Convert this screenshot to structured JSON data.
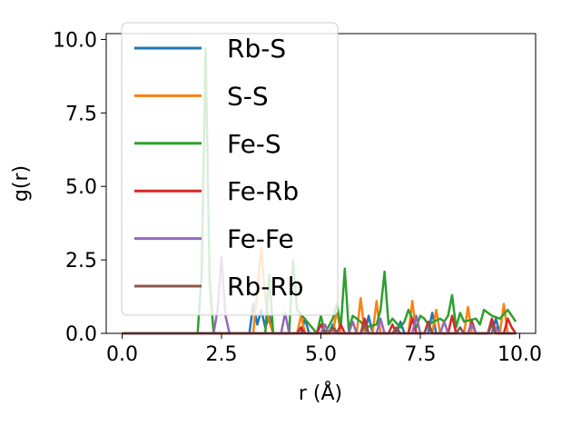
{
  "chart_data": {
    "type": "line",
    "title": "",
    "xlabel": "r (Å)",
    "ylabel": "g(r)",
    "xlim": [
      -0.4,
      10.4
    ],
    "ylim": [
      0,
      10.2
    ],
    "xticks": [
      "0.0",
      "2.5",
      "5.0",
      "7.5",
      "10.0"
    ],
    "yticks": [
      "0.0",
      "2.5",
      "5.0",
      "7.5",
      "10.0"
    ],
    "grid": false,
    "legend_position": "upper-left",
    "series": [
      {
        "name": "Rb-S",
        "color": "#1f77b4",
        "x": [
          0,
          3.2,
          3.3,
          3.4,
          3.5,
          3.6,
          3.7,
          3.8,
          4.5,
          4.6,
          4.7,
          5.2,
          5.3,
          5.4,
          6.1,
          6.2,
          6.3,
          6.9,
          7.0,
          7.1,
          7.7,
          7.8,
          7.9,
          9.3,
          9.4,
          9.5,
          9.9
        ],
        "y": [
          0,
          0,
          1.0,
          0.3,
          0.8,
          0.2,
          0.6,
          0,
          0,
          0.5,
          0,
          0,
          0.3,
          0,
          0,
          0.6,
          0,
          0,
          0.4,
          0,
          0,
          0.7,
          0,
          0,
          0.5,
          0,
          0
        ]
      },
      {
        "name": "S-S",
        "color": "#ff7f0e",
        "x": [
          0,
          3.3,
          3.4,
          3.5,
          3.6,
          3.7,
          3.8,
          4.4,
          4.5,
          4.6,
          5.3,
          5.4,
          5.5,
          5.9,
          6.0,
          6.1,
          6.3,
          6.4,
          6.5,
          7.2,
          7.3,
          7.4,
          7.8,
          7.9,
          8.0,
          8.6,
          8.7,
          8.8,
          9.5,
          9.6,
          9.7,
          9.9
        ],
        "y": [
          0,
          0,
          1.5,
          2.9,
          1.2,
          0.4,
          0,
          0,
          0.6,
          0,
          0,
          0.8,
          0,
          0,
          1.2,
          0,
          0,
          1.1,
          0,
          0,
          1.1,
          0,
          0,
          0.8,
          0,
          0,
          0.9,
          0,
          0,
          1.0,
          0,
          0
        ]
      },
      {
        "name": "Fe-S",
        "color": "#2ca02c",
        "x": [
          0,
          1.9,
          2.0,
          2.1,
          2.2,
          2.3,
          3.6,
          3.7,
          3.8,
          4.2,
          4.3,
          4.4,
          4.9,
          5.0,
          5.1,
          5.3,
          5.4,
          5.5,
          5.6,
          5.7,
          5.8,
          5.9,
          6.0,
          6.1,
          6.4,
          6.5,
          6.6,
          6.7,
          6.8,
          7.0,
          7.1,
          7.2,
          7.4,
          7.5,
          7.6,
          7.7,
          8.0,
          8.1,
          8.2,
          8.3,
          8.4,
          8.5,
          8.6,
          8.9,
          9.0,
          9.1,
          9.3,
          9.5,
          9.7,
          9.8,
          9.9
        ],
        "y": [
          0,
          0,
          2.0,
          9.7,
          1.8,
          0,
          0,
          2.0,
          0,
          0,
          2.5,
          0.8,
          0,
          0.6,
          0,
          0.5,
          1.0,
          0.2,
          2.2,
          0.1,
          0.6,
          0.5,
          0.4,
          0.2,
          0.3,
          0.8,
          2.1,
          0.3,
          0.5,
          0.2,
          0.4,
          0.8,
          0.2,
          0.6,
          0.5,
          0.3,
          0.5,
          0.4,
          0.6,
          1.3,
          0.2,
          0.7,
          0.4,
          0.5,
          0.3,
          0.8,
          0.6,
          0.5,
          0.8,
          0.6,
          0.4
        ]
      },
      {
        "name": "Fe-Rb",
        "color": "#d62728",
        "x": [
          0,
          4.4,
          4.5,
          4.6,
          4.9,
          5.0,
          5.1,
          5.4,
          5.5,
          5.6,
          6.0,
          6.1,
          6.2,
          6.7,
          6.8,
          6.9,
          7.2,
          7.3,
          7.4,
          7.6,
          7.7,
          7.8,
          8.2,
          8.3,
          8.4,
          8.7,
          8.8,
          8.9,
          9.2,
          9.3,
          9.4,
          9.6,
          9.7,
          9.8,
          9.9
        ],
        "y": [
          0,
          0,
          0.2,
          0,
          0,
          0.3,
          0,
          0,
          0.3,
          0,
          0,
          0.5,
          0,
          0,
          0.3,
          0,
          0,
          0.5,
          0,
          0,
          0.4,
          0,
          0,
          0.6,
          0,
          0,
          0.4,
          0,
          0,
          0.5,
          0,
          0,
          0.5,
          0.2,
          0
        ]
      },
      {
        "name": "Fe-Fe",
        "color": "#9467bd",
        "x": [
          0,
          2.3,
          2.4,
          2.5,
          2.6,
          2.7,
          4.0,
          4.1,
          4.2,
          5.0,
          5.1,
          5.2,
          5.7,
          5.8,
          5.9,
          6.4,
          6.5,
          6.6,
          7.3,
          7.4,
          7.5,
          8.0,
          8.1,
          8.2,
          8.7,
          8.8,
          8.9,
          9.3,
          9.4,
          9.5,
          9.9
        ],
        "y": [
          0,
          0,
          0.8,
          2.6,
          0.6,
          0,
          0,
          0.7,
          0,
          0,
          0.3,
          0,
          0,
          0.4,
          0,
          0,
          0.5,
          0,
          0,
          0.6,
          0,
          0,
          0.4,
          0,
          0,
          0.3,
          0,
          0,
          0.2,
          0,
          0
        ]
      },
      {
        "name": "Rb-Rb",
        "color": "#8c564b",
        "x": [
          0,
          5.2,
          5.3,
          5.4,
          6.0,
          6.1,
          6.2,
          6.8,
          6.9,
          7.0,
          7.6,
          7.7,
          7.8,
          8.4,
          8.5,
          8.6,
          9.2,
          9.3,
          9.4,
          9.9
        ],
        "y": [
          0,
          0,
          0.2,
          0,
          0,
          0.3,
          0,
          0,
          0.2,
          0,
          0,
          0.3,
          0,
          0,
          0.2,
          0,
          0,
          0.3,
          0,
          0
        ]
      }
    ]
  }
}
